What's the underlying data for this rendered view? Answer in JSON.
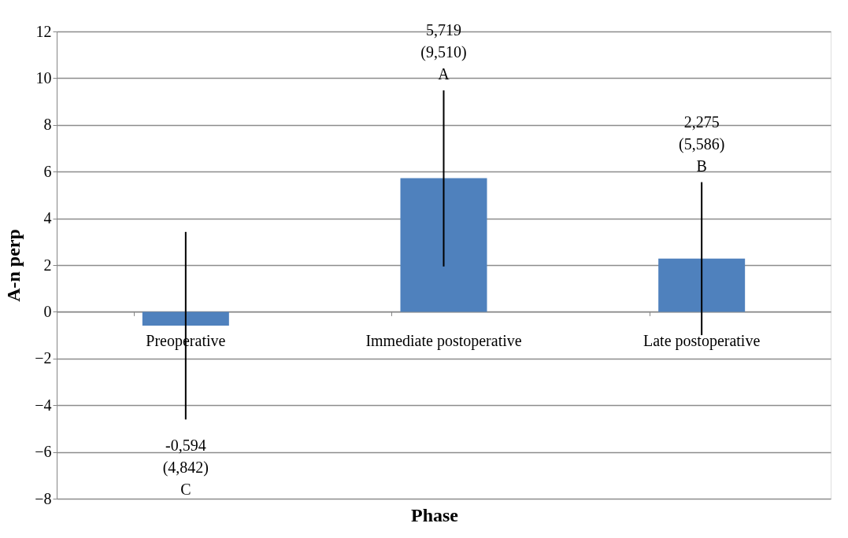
{
  "chart_data": {
    "type": "bar",
    "xlabel": "Phase",
    "ylabel": "A-n perp",
    "categories": [
      "Preoperative",
      "Immediate postoperative",
      "Late postoperative"
    ],
    "series": [
      {
        "color": "#4f81bd",
        "values": [
          -0.594,
          5.719,
          2.275
        ],
        "errors": [
          [
            -4.61,
            3.42
          ],
          [
            1.94,
            9.48
          ],
          [
            -1.0,
            5.55
          ]
        ]
      }
    ],
    "annotations": [
      "-0,594",
      "(4,842)",
      "C",
      "5,719",
      "(9,510)",
      "A",
      "2,275",
      "(5,586)",
      "B"
    ],
    "ylim": [
      -8,
      12
    ],
    "yticks": [
      -8,
      -6,
      -4,
      -2,
      0,
      2,
      4,
      6,
      8,
      10,
      12
    ],
    "grid": "y"
  }
}
